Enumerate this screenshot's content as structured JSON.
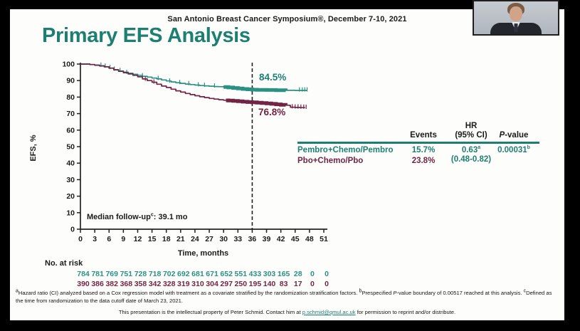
{
  "meta": {
    "conference": "San Antonio Breast Cancer Symposium®, December 7-10, 2021",
    "title": "Primary EFS Analysis"
  },
  "colors": {
    "teal": "#1d7f71",
    "teal_curve": "#2a9183",
    "maroon": "#722445",
    "black": "#1a1a1a",
    "slide_bg": "#fdfdfc"
  },
  "chart_data": {
    "type": "line",
    "title": "Primary EFS Analysis",
    "xlabel": "Time, months",
    "ylabel": "EFS, %",
    "xlim": [
      0,
      51
    ],
    "ylim": [
      0,
      100
    ],
    "x_ticks": [
      0,
      3,
      6,
      9,
      12,
      15,
      18,
      21,
      24,
      27,
      30,
      33,
      36,
      39,
      42,
      45,
      48,
      51
    ],
    "y_ticks": [
      0,
      10,
      20,
      30,
      40,
      50,
      60,
      70,
      80,
      90,
      100
    ],
    "grid": "off",
    "legend_position": "table-right",
    "dashed_line_x": 36,
    "median_pre": "Median follow-up",
    "median_sup": "c",
    "median_post": ": 39.1 mo",
    "series": [
      {
        "name": "Pembro+Chemo/Pembro",
        "color": "#2a9183",
        "landmark_label": "84.5%",
        "landmark_x": 36,
        "landmark_y": 84.5,
        "points": [
          [
            0,
            100
          ],
          [
            1.5,
            100
          ],
          [
            2,
            99.7
          ],
          [
            3,
            99.4
          ],
          [
            4,
            99
          ],
          [
            5,
            98.4
          ],
          [
            6,
            97.6
          ],
          [
            7,
            96.6
          ],
          [
            8,
            95.8
          ],
          [
            9,
            95.1
          ],
          [
            10,
            94.5
          ],
          [
            11,
            93.8
          ],
          [
            12,
            93.2
          ],
          [
            13,
            92.6
          ],
          [
            14,
            92.1
          ],
          [
            15,
            91.5
          ],
          [
            16,
            91
          ],
          [
            17,
            90.4
          ],
          [
            18,
            89.8
          ],
          [
            19,
            89.2
          ],
          [
            20,
            88.7
          ],
          [
            21,
            88.3
          ],
          [
            22,
            87.9
          ],
          [
            23,
            87.6
          ],
          [
            24,
            87.3
          ],
          [
            25,
            87
          ],
          [
            26,
            86.8
          ],
          [
            27,
            86.6
          ],
          [
            28,
            86.4
          ],
          [
            29,
            86.3
          ],
          [
            30,
            86.1
          ],
          [
            31,
            85.8
          ],
          [
            32,
            85.5
          ],
          [
            33,
            85.2
          ],
          [
            34,
            84.9
          ],
          [
            35,
            84.7
          ],
          [
            36,
            84.5
          ],
          [
            37,
            84.4
          ],
          [
            39,
            84.3
          ],
          [
            41,
            84.2
          ],
          [
            43,
            84.1
          ],
          [
            45,
            84
          ],
          [
            47.5,
            84
          ]
        ],
        "censor_ticks": [
          [
            4.3,
            99
          ],
          [
            5.2,
            98.4
          ],
          [
            6.2,
            97.6
          ],
          [
            7.1,
            96.6
          ],
          [
            8.3,
            95.8
          ],
          [
            9.7,
            94.6
          ],
          [
            13,
            92.6
          ],
          [
            16.3,
            91
          ],
          [
            18.7,
            89.4
          ],
          [
            20.8,
            88.5
          ],
          [
            22.7,
            87.8
          ],
          [
            24.7,
            87.1
          ],
          [
            26,
            86.8
          ],
          [
            28.1,
            86.4
          ],
          [
            45.9,
            84
          ],
          [
            46.5,
            84
          ],
          [
            47,
            84
          ],
          [
            47.5,
            84
          ]
        ],
        "thick_segment": [
          [
            30,
            86.1
          ],
          [
            31,
            85.8
          ],
          [
            32,
            85.5
          ],
          [
            33,
            85.2
          ],
          [
            34,
            84.9
          ],
          [
            35,
            84.7
          ],
          [
            36,
            84.5
          ],
          [
            37,
            84.4
          ],
          [
            39,
            84.3
          ],
          [
            41,
            84.2
          ],
          [
            43,
            84.1
          ]
        ]
      },
      {
        "name": "Pbo+Chemo/Pbo",
        "color": "#722445",
        "landmark_label": "76.8%",
        "landmark_x": 36,
        "landmark_y": 76.8,
        "points": [
          [
            0,
            100
          ],
          [
            1.5,
            100
          ],
          [
            2,
            99.7
          ],
          [
            3,
            99.3
          ],
          [
            4,
            98.9
          ],
          [
            5,
            98.3
          ],
          [
            6,
            97.5
          ],
          [
            7,
            96.5
          ],
          [
            8,
            95.6
          ],
          [
            9,
            94.8
          ],
          [
            10,
            94
          ],
          [
            11,
            93.2
          ],
          [
            12,
            92.3
          ],
          [
            13,
            91
          ],
          [
            14,
            90
          ],
          [
            15,
            89
          ],
          [
            16,
            87.8
          ],
          [
            17,
            86.7
          ],
          [
            18,
            85.8
          ],
          [
            19,
            84.8
          ],
          [
            20,
            83.8
          ],
          [
            21,
            83
          ],
          [
            22,
            82.2
          ],
          [
            23,
            81.5
          ],
          [
            24,
            80.8
          ],
          [
            25,
            80.2
          ],
          [
            26,
            79.7
          ],
          [
            27,
            79.2
          ],
          [
            28,
            78.8
          ],
          [
            29,
            78.4
          ],
          [
            30,
            78.1
          ],
          [
            31,
            77.9
          ],
          [
            32,
            77.7
          ],
          [
            33,
            77.5
          ],
          [
            34,
            77.2
          ],
          [
            35,
            77
          ],
          [
            36,
            76.8
          ],
          [
            37,
            76.6
          ],
          [
            38,
            76.4
          ],
          [
            39,
            76.2
          ],
          [
            40,
            75.9
          ],
          [
            41,
            75.6
          ],
          [
            42,
            75.3
          ],
          [
            43,
            75.1
          ],
          [
            43.8,
            75
          ],
          [
            44,
            73.9
          ],
          [
            45,
            73.7
          ],
          [
            46,
            73.6
          ],
          [
            47,
            73.5
          ]
        ],
        "censor_ticks": [
          [
            13.6,
            90.5
          ],
          [
            15.4,
            88.8
          ],
          [
            44.4,
            73.8
          ],
          [
            45,
            73.7
          ],
          [
            45.6,
            73.7
          ],
          [
            46.2,
            73.6
          ],
          [
            46.8,
            73.6
          ],
          [
            47.3,
            73.5
          ]
        ],
        "thick_segment": [
          [
            30.5,
            78
          ],
          [
            31,
            77.9
          ],
          [
            32,
            77.7
          ],
          [
            33,
            77.5
          ],
          [
            34,
            77.2
          ],
          [
            35,
            77
          ],
          [
            36,
            76.8
          ],
          [
            37,
            76.6
          ],
          [
            38,
            76.4
          ],
          [
            39,
            76.2
          ],
          [
            40,
            75.9
          ],
          [
            41,
            75.6
          ],
          [
            42,
            75.3
          ],
          [
            43,
            75.1
          ]
        ]
      }
    ],
    "no_at_risk": {
      "label": "No. at risk",
      "rows": [
        {
          "name": "Pembro+Chemo/Pembro",
          "color": "#2a9183",
          "values": [
            784,
            781,
            769,
            751,
            728,
            718,
            702,
            692,
            681,
            671,
            652,
            551,
            433,
            303,
            165,
            28,
            0,
            0
          ]
        },
        {
          "name": "Pbo+Chemo/Pbo",
          "color": "#722445",
          "values": [
            390,
            386,
            382,
            368,
            358,
            342,
            328,
            319,
            310,
            304,
            297,
            250,
            195,
            140,
            83,
            17,
            0,
            0
          ]
        }
      ]
    }
  },
  "results_table": {
    "col_events": "Events",
    "col_hr_line1": "HR",
    "col_hr_line2": "(95% CI)",
    "col_p_italic": "P",
    "col_p_rest": "-value",
    "rows": [
      {
        "label": "Pembro+Chemo/Pembro",
        "events": "15.7%",
        "hr": "0.63",
        "hr_sup": "a",
        "p": "0.00031",
        "p_sup": "b"
      },
      {
        "label": "Pbo+Chemo/Pbo",
        "events": "23.8%"
      }
    ],
    "hr_ci": "(0.48-0.82)"
  },
  "footnote": {
    "marker_a": "a",
    "a_text": "Hazard ratio (CI) analyzed based on a Cox regression model with treatment as a covariate stratified by the randomization stratification factors. ",
    "marker_b": "b",
    "b_pre": "Prespecified ",
    "b_italic": "P",
    "b_post": "-value boundary of 0.00517 reached at this analysis. ",
    "marker_c": "c",
    "c_text": "Defined as the time from randomization to the data cutoff date of March 23, 2021.",
    "contact_pre": "This presentation is the intellectual property of Peter Schmid. Contact him at ",
    "contact_email": "p.schmid@qmul.ac.uk",
    "contact_post": " for permission to reprint and/or distribute."
  }
}
